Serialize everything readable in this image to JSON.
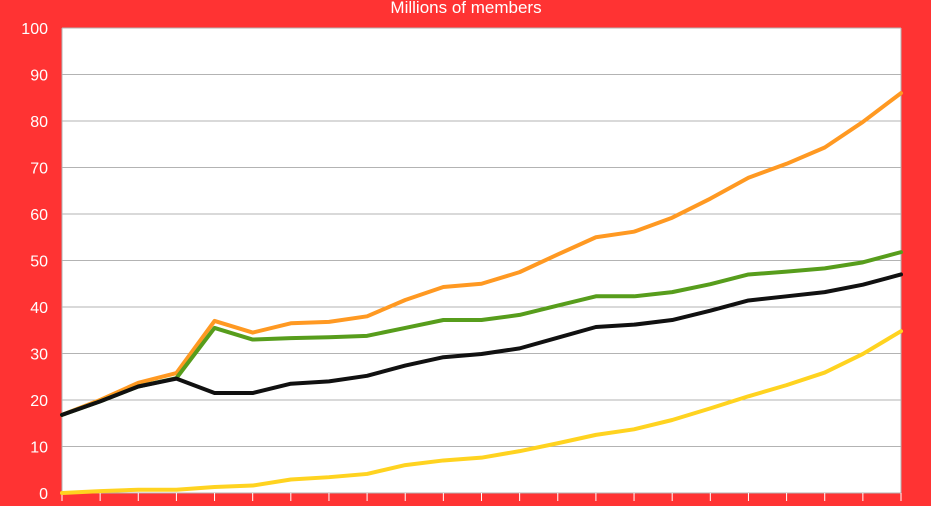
{
  "chart_data": {
    "type": "line",
    "title": "Millions of members",
    "xlabel": "",
    "ylabel": "",
    "ylim": [
      0,
      100
    ],
    "yticks": [
      0,
      10,
      20,
      30,
      40,
      50,
      60,
      70,
      80,
      90,
      100
    ],
    "x": [
      0,
      1,
      2,
      3,
      4,
      5,
      6,
      7,
      8,
      9,
      10,
      11,
      12,
      13,
      14,
      15,
      16,
      17,
      18,
      19,
      20,
      21,
      22
    ],
    "grid": true,
    "legend": "none",
    "series": [
      {
        "color": "#ff9922",
        "values": [
          16.8,
          20,
          23.7,
          25.8,
          37,
          34.5,
          36.5,
          36.8,
          38,
          41.5,
          44.3,
          45,
          47.5,
          51.3,
          55,
          56.2,
          59.2,
          63.3,
          67.8,
          70.8,
          74.3,
          79.8,
          86
        ]
      },
      {
        "color": "#579d1c",
        "values": [
          16.8,
          19.7,
          22.9,
          24.7,
          35.5,
          33,
          33.3,
          33.5,
          33.8,
          35.5,
          37.2,
          37.2,
          38.3,
          40.3,
          42.3,
          42.3,
          43.2,
          44.9,
          47,
          47.6,
          48.3,
          49.6,
          51.8
        ]
      },
      {
        "color": "#111111",
        "values": [
          16.8,
          19.7,
          22.9,
          24.6,
          21.5,
          21.5,
          23.5,
          24,
          25.2,
          27.4,
          29.2,
          29.9,
          31.1,
          33.4,
          35.7,
          36.2,
          37.2,
          39.2,
          41.4,
          42.3,
          43.2,
          44.8,
          47
        ]
      },
      {
        "color": "#ffd320",
        "values": [
          0,
          0.4,
          0.7,
          0.7,
          1.3,
          1.6,
          2.9,
          3.4,
          4.1,
          6,
          7,
          7.6,
          9,
          10.7,
          12.5,
          13.7,
          15.7,
          18.2,
          20.8,
          23.2,
          25.9,
          29.9,
          34.8
        ]
      }
    ]
  }
}
